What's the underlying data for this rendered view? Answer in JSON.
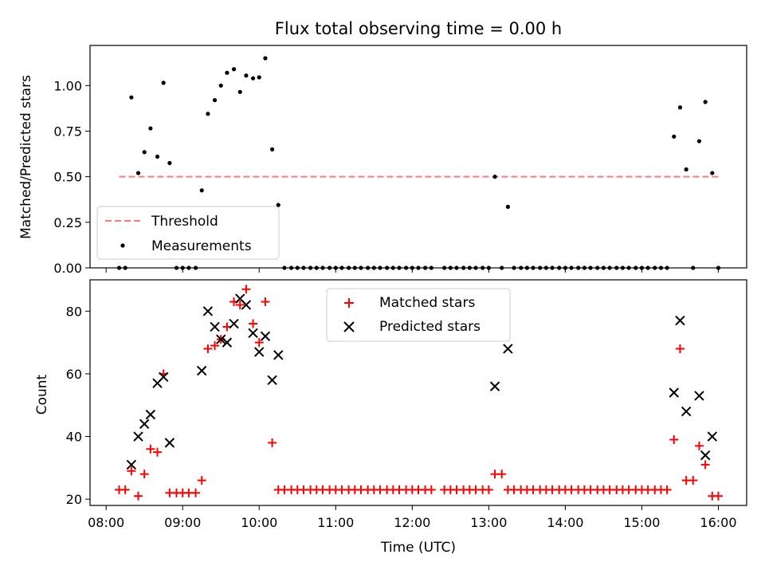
{
  "chart_data": [
    {
      "type": "scatter",
      "title": "Flux total observing time = 0.00 h",
      "xlabel": "",
      "ylabel": "Matched/Predicted stars",
      "xlim": [
        7.79,
        16.37
      ],
      "ylim": [
        0.0,
        1.22
      ],
      "x_ticks": [
        8,
        9,
        10,
        11,
        12,
        13,
        14,
        15,
        16
      ],
      "y_ticks": [
        0.0,
        0.25,
        0.5,
        0.75,
        1.0
      ],
      "y_tick_labels": [
        "0.00",
        "0.25",
        "0.50",
        "0.75",
        "1.00"
      ],
      "legend": {
        "location": "lower-left",
        "entries": [
          "Threshold",
          "Measurements"
        ]
      },
      "threshold": {
        "name": "Threshold",
        "value": 0.5,
        "x_range": [
          8.17,
          16.0
        ],
        "color": "#ff7b7b"
      },
      "series": [
        {
          "name": "Measurements",
          "color": "#000000",
          "x": [
            8.17,
            8.25,
            8.33,
            8.42,
            8.5,
            8.58,
            8.67,
            8.75,
            8.83,
            8.92,
            9.0,
            9.08,
            9.17,
            9.25,
            9.33,
            9.42,
            9.5,
            9.58,
            9.67,
            9.75,
            9.83,
            9.92,
            10.0,
            10.08,
            10.17,
            10.25,
            10.33,
            10.42,
            10.5,
            10.58,
            10.67,
            10.75,
            10.83,
            10.92,
            11.0,
            11.08,
            11.17,
            11.25,
            11.33,
            11.42,
            11.5,
            11.58,
            11.67,
            11.75,
            11.83,
            11.92,
            12.0,
            12.08,
            12.17,
            12.25,
            12.42,
            12.5,
            12.58,
            12.67,
            12.75,
            12.83,
            12.92,
            13.0,
            13.08,
            13.17,
            13.25,
            13.33,
            13.42,
            13.5,
            13.58,
            13.67,
            13.75,
            13.83,
            13.92,
            14.0,
            14.08,
            14.17,
            14.25,
            14.33,
            14.42,
            14.5,
            14.58,
            14.67,
            14.75,
            14.83,
            14.92,
            15.0,
            15.08,
            15.17,
            15.25,
            15.33,
            15.42,
            15.5,
            15.58,
            15.67,
            15.75,
            15.83,
            15.92,
            16.0
          ],
          "y": [
            0,
            0,
            0.935,
            0.52,
            0.635,
            0.765,
            0.61,
            1.015,
            0.575,
            0,
            0,
            0,
            0,
            0.425,
            0.845,
            0.92,
            1.0,
            1.07,
            1.09,
            0.965,
            1.055,
            1.04,
            1.045,
            1.15,
            0.65,
            0.345,
            0,
            0,
            0,
            0,
            0,
            0,
            0,
            0,
            0,
            0,
            0,
            0,
            0,
            0,
            0,
            0,
            0,
            0,
            0,
            0,
            0,
            0,
            0,
            0,
            0,
            0,
            0,
            0,
            0,
            0,
            0,
            0,
            0.5,
            0,
            0.335,
            0,
            0,
            0,
            0,
            0,
            0,
            0,
            0,
            0,
            0,
            0,
            0,
            0,
            0,
            0,
            0,
            0,
            0,
            0,
            0,
            0,
            0,
            0,
            0,
            0,
            0.72,
            0.88,
            0.54,
            0,
            0.695,
            0.91,
            0.52,
            0
          ]
        }
      ]
    },
    {
      "type": "scatter",
      "title": "",
      "xlabel": "Time (UTC)",
      "ylabel": "Count",
      "xlim": [
        7.79,
        16.37
      ],
      "ylim": [
        18,
        90
      ],
      "x_ticks": [
        8,
        9,
        10,
        11,
        12,
        13,
        14,
        15,
        16
      ],
      "x_tick_labels": [
        "08:00",
        "09:00",
        "10:00",
        "11:00",
        "12:00",
        "13:00",
        "14:00",
        "15:00",
        "16:00"
      ],
      "y_ticks": [
        20,
        40,
        60,
        80
      ],
      "y_tick_labels": [
        "20",
        "40",
        "60",
        "80"
      ],
      "legend": {
        "location": "upper-center",
        "entries": [
          "Matched stars",
          "Predicted stars"
        ]
      },
      "series": [
        {
          "name": "Matched stars",
          "marker": "plus",
          "color": "#ff0000",
          "x": [
            8.17,
            8.25,
            8.33,
            8.42,
            8.5,
            8.58,
            8.67,
            8.75,
            8.83,
            8.92,
            9.0,
            9.08,
            9.17,
            9.25,
            9.33,
            9.42,
            9.5,
            9.58,
            9.67,
            9.75,
            9.83,
            9.92,
            10.0,
            10.08,
            10.17,
            10.25,
            10.33,
            10.42,
            10.5,
            10.58,
            10.67,
            10.75,
            10.83,
            10.92,
            11.0,
            11.08,
            11.17,
            11.25,
            11.33,
            11.42,
            11.5,
            11.58,
            11.67,
            11.75,
            11.83,
            11.92,
            12.0,
            12.08,
            12.17,
            12.25,
            12.42,
            12.5,
            12.58,
            12.67,
            12.75,
            12.83,
            12.92,
            13.0,
            13.08,
            13.17,
            13.25,
            13.33,
            13.42,
            13.5,
            13.58,
            13.67,
            13.75,
            13.83,
            13.92,
            14.0,
            14.08,
            14.17,
            14.25,
            14.33,
            14.42,
            14.5,
            14.58,
            14.67,
            14.75,
            14.83,
            14.92,
            15.0,
            15.08,
            15.17,
            15.25,
            15.33,
            15.42,
            15.5,
            15.58,
            15.67,
            15.75,
            15.83,
            15.92,
            16.0
          ],
          "y": [
            23,
            23,
            29,
            21,
            28,
            36,
            35,
            60,
            22,
            22,
            22,
            22,
            22,
            26,
            68,
            69,
            71,
            75,
            83,
            82,
            87,
            76,
            70,
            83,
            38,
            23,
            23,
            23,
            23,
            23,
            23,
            23,
            23,
            23,
            23,
            23,
            23,
            23,
            23,
            23,
            23,
            23,
            23,
            23,
            23,
            23,
            23,
            23,
            23,
            23,
            23,
            23,
            23,
            23,
            23,
            23,
            23,
            23,
            28,
            28,
            23,
            23,
            23,
            23,
            23,
            23,
            23,
            23,
            23,
            23,
            23,
            23,
            23,
            23,
            23,
            23,
            23,
            23,
            23,
            23,
            23,
            23,
            23,
            23,
            23,
            23,
            39,
            68,
            26,
            26,
            37,
            31,
            21,
            21
          ]
        },
        {
          "name": "Predicted stars",
          "marker": "x",
          "color": "#000000",
          "x": [
            8.33,
            8.42,
            8.5,
            8.58,
            8.67,
            8.75,
            8.83,
            9.25,
            9.33,
            9.42,
            9.5,
            9.58,
            9.67,
            9.75,
            9.83,
            9.92,
            10.0,
            10.08,
            10.17,
            10.25,
            13.08,
            13.25,
            15.42,
            15.5,
            15.58,
            15.75,
            15.83,
            15.92
          ],
          "y": [
            31,
            40,
            44,
            47,
            57,
            59,
            38,
            61,
            80,
            75,
            71,
            70,
            76,
            84,
            82,
            73,
            67,
            72,
            58,
            66,
            56,
            68,
            54,
            77,
            48,
            53,
            34,
            40
          ]
        }
      ]
    }
  ]
}
